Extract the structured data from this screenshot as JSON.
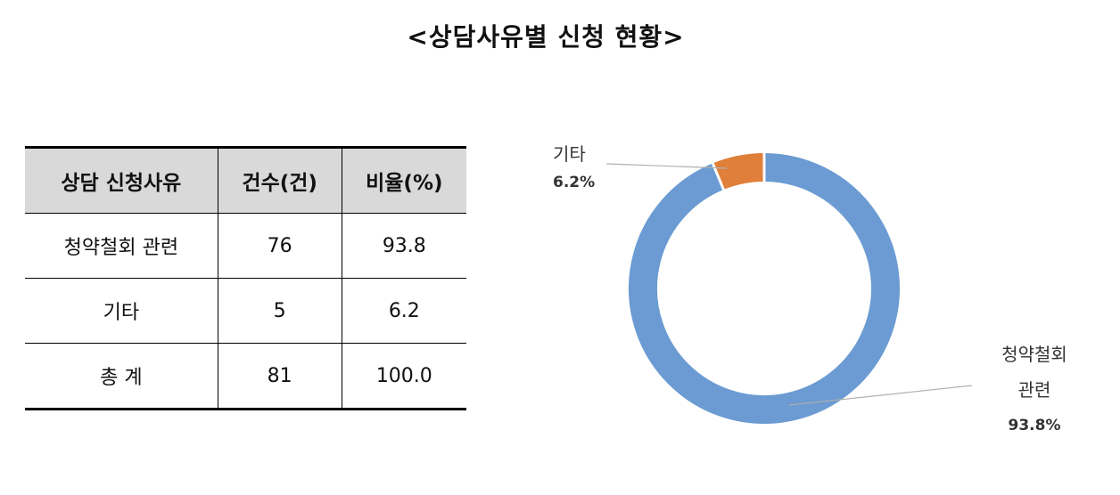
{
  "title": "<상담사유별 신청 현황>",
  "table": {
    "headers": [
      "상담 신청사유",
      "건수(건)",
      "비율(%)"
    ],
    "rows": [
      [
        "청약철회 관련",
        "76",
        "93.8"
      ],
      [
        "기타",
        "5",
        "6.2"
      ],
      [
        "총 계",
        "81",
        "100.0"
      ]
    ]
  },
  "chart_data": {
    "type": "pie",
    "donut": true,
    "categories": [
      "청약철회 관련",
      "기타"
    ],
    "values": [
      93.8,
      6.2
    ],
    "labels": [
      {
        "name_lines": [
          "청약철회",
          "관련"
        ],
        "percent": "93.8%"
      },
      {
        "name_lines": [
          "기타"
        ],
        "percent": "6.2%"
      }
    ],
    "colors": [
      "#6b9bd2",
      "#e07f3a"
    ]
  }
}
